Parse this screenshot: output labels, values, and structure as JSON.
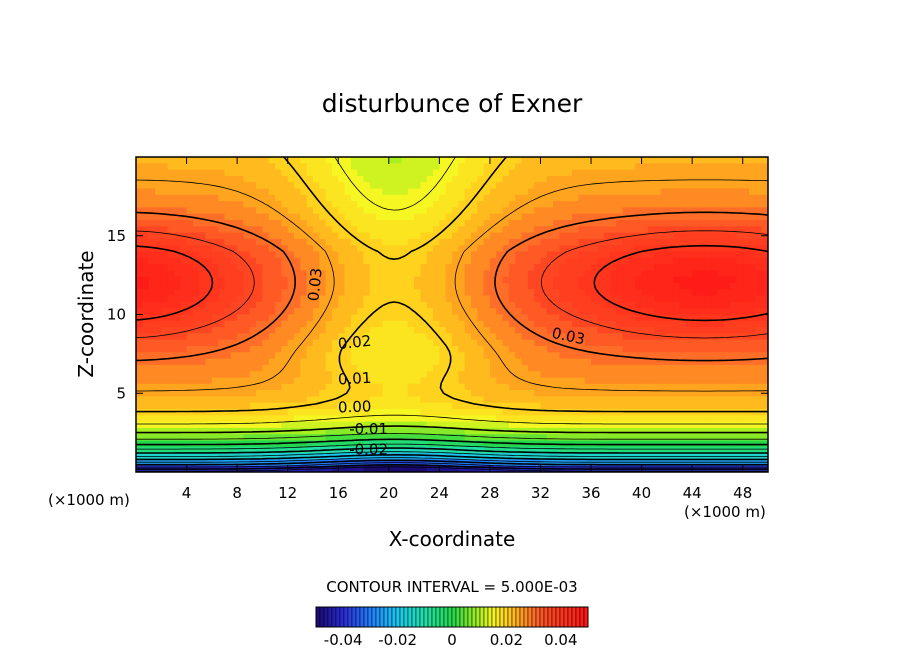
{
  "chart_data": {
    "type": "heatmap",
    "title": "disturbunce of Exner",
    "xlabel": "X-coordinate",
    "ylabel": "Z-coordinate",
    "x_unit": "(×1000 m)",
    "z_unit": "(×1000 m)",
    "x_ticks": [
      4,
      8,
      12,
      16,
      20,
      24,
      28,
      32,
      36,
      40,
      44,
      48
    ],
    "y_ticks": [
      5,
      10,
      15
    ],
    "xlim": [
      0,
      50
    ],
    "ylim": [
      0,
      20
    ],
    "contour_interval_text": "CONTOUR INTERVAL = 5.000E-03",
    "contour_labels": [
      {
        "text": "0.03",
        "x": 14.2,
        "z": 11.9,
        "angle": -84
      },
      {
        "text": "0.03",
        "x": 34.2,
        "z": 8.6,
        "angle": 12
      },
      {
        "text": "0.02",
        "x": 17.3,
        "z": 8.2,
        "angle": -6
      },
      {
        "text": "0.01",
        "x": 17.3,
        "z": 5.9,
        "angle": -3
      },
      {
        "text": "0.00",
        "x": 17.3,
        "z": 4.1,
        "angle": -2
      },
      {
        "text": "-0.01",
        "x": 18.4,
        "z": 2.7,
        "angle": 0
      },
      {
        "text": "-0.02",
        "x": 18.4,
        "z": 1.4,
        "angle": 0
      }
    ],
    "colorbar": {
      "range": [
        -0.05,
        0.05
      ],
      "tick_labels": [
        "-0.04",
        "-0.02",
        "0",
        "0.02",
        "0.04"
      ],
      "tick_values": [
        -0.04,
        -0.02,
        0,
        0.02,
        0.04
      ]
    },
    "color_levels": [
      {
        "value": -0.05,
        "color": "#1a0a6e"
      },
      {
        "value": -0.04,
        "color": "#2b2bd9"
      },
      {
        "value": -0.03,
        "color": "#1f7fff"
      },
      {
        "value": -0.02,
        "color": "#19c8f0"
      },
      {
        "value": -0.01,
        "color": "#20e0a8"
      },
      {
        "value": 0.0,
        "color": "#22d84a"
      },
      {
        "value": 0.01,
        "color": "#a8f01e"
      },
      {
        "value": 0.015,
        "color": "#f6f622"
      },
      {
        "value": 0.02,
        "color": "#ffd21e"
      },
      {
        "value": 0.025,
        "color": "#ffa41e"
      },
      {
        "value": 0.03,
        "color": "#ff6e28"
      },
      {
        "value": 0.035,
        "color": "#ff4622"
      },
      {
        "value": 0.05,
        "color": "#ff1414"
      }
    ]
  }
}
